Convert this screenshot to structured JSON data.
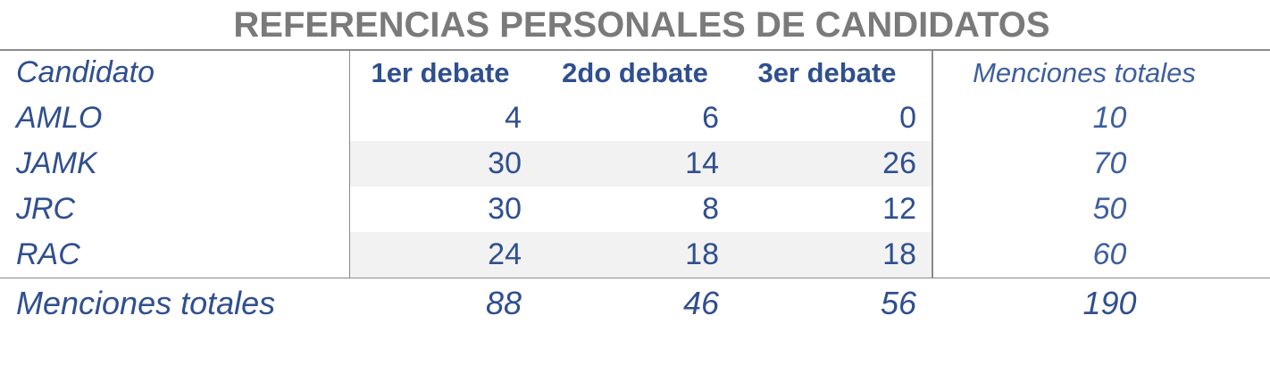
{
  "title": "REFERENCIAS PERSONALES DE CANDIDATOS",
  "chart_data": {
    "type": "table",
    "title": "REFERENCIAS PERSONALES DE CANDIDATOS",
    "columns": [
      "Candidato",
      "1er debate",
      "2do debate",
      "3er debate",
      "Menciones totales"
    ],
    "rows": [
      {
        "name": "AMLO",
        "d1": "4",
        "d2": "6",
        "d3": "0",
        "total": "10"
      },
      {
        "name": "JAMK",
        "d1": "30",
        "d2": "14",
        "d3": "26",
        "total": "70"
      },
      {
        "name": "JRC",
        "d1": "30",
        "d2": "8",
        "d3": "12",
        "total": "50"
      },
      {
        "name": "RAC",
        "d1": "24",
        "d2": "18",
        "d3": "18",
        "total": "60"
      }
    ],
    "totals": {
      "label": "Menciones totales",
      "d1": "88",
      "d2": "46",
      "d3": "56",
      "total": "190"
    }
  },
  "colors": {
    "text": "#2f4f8f",
    "title": "#7a7a7a",
    "band": "#f2f2f2",
    "rule": "#8a8a8a"
  }
}
